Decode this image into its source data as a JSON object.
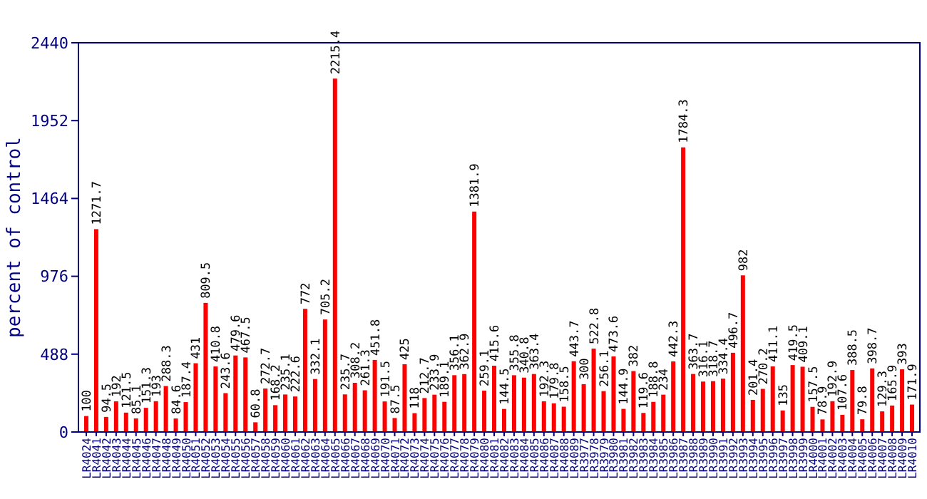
{
  "chart_data": {
    "type": "bar",
    "ylabel": "percent of control",
    "color": "#ff0000",
    "ylim": [
      0,
      2440
    ],
    "yticks": [
      0,
      488,
      976,
      1464,
      1952,
      2440
    ],
    "grid": false,
    "data_labels": true,
    "categories": [
      "LR4024",
      "LR4041",
      "LR4042",
      "LR4043",
      "LR4044",
      "LR4045",
      "LR4046",
      "LR4047",
      "LR4048",
      "LR4049",
      "LR4050",
      "LR4051",
      "LR4052",
      "LR4053",
      "LR4054",
      "LR4055",
      "LR4056",
      "LR4057",
      "LR4058",
      "LR4059",
      "LR4060",
      "LR4061",
      "LR4062",
      "LR4063",
      "LR4064",
      "LR4065",
      "LR4066",
      "LR4067",
      "LR4068",
      "LR4069",
      "LR4070",
      "LR4071",
      "LR4072",
      "LR4073",
      "LR4074",
      "LR4075",
      "LR4076",
      "LR4077",
      "LR4078",
      "LR4079",
      "LR4080",
      "LR4081",
      "LR4082",
      "LR4083",
      "LR4084",
      "LR4085",
      "LR4086",
      "LR4087",
      "LR4088",
      "LR4089",
      "LR3977",
      "LR3978",
      "LR3979",
      "LR3980",
      "LR3981",
      "LR3982",
      "LR3983",
      "LR3984",
      "LR3985",
      "LR3986",
      "LR3987",
      "LR3988",
      "LR3989",
      "LR3990",
      "LR3991",
      "LR3992",
      "LR3993",
      "LR3994",
      "LR3995",
      "LR3996",
      "LR3997",
      "LR3998",
      "LR3999",
      "LR4000",
      "LR4001",
      "LR4002",
      "LR4003",
      "LR4004",
      "LR4005",
      "LR4006",
      "LR4007",
      "LR4008",
      "LR4009",
      "LR4010"
    ],
    "values": [
      100,
      1271.7,
      94.5,
      192,
      121.5,
      85.1,
      151.3,
      193,
      288.3,
      84.6,
      187.4,
      431,
      809.5,
      410.8,
      243.6,
      479.6,
      467.5,
      60.8,
      272.7,
      168.2,
      235.1,
      222.6,
      772,
      332.1,
      705.2,
      2215.4,
      235.7,
      308.2,
      261.3,
      451.8,
      191.5,
      87.5,
      425,
      118,
      212.7,
      233.9,
      189.1,
      356.1,
      362.9,
      1381.9,
      259.1,
      415.6,
      144.5,
      355.8,
      340.8,
      363.4,
      192.3,
      179.8,
      158.5,
      443.7,
      300,
      522.8,
      256.1,
      473.6,
      144.9,
      382,
      119.6,
      188.8,
      234,
      442.3,
      1784.3,
      363.7,
      316.1,
      318.7,
      334.4,
      496.7,
      982,
      201.4,
      270.2,
      411.1,
      135,
      419.5,
      409.1,
      157.5,
      78.9,
      192.9,
      107.6,
      388.5,
      79.8,
      398.7,
      129.3,
      165.9,
      393,
      171.9
    ]
  }
}
